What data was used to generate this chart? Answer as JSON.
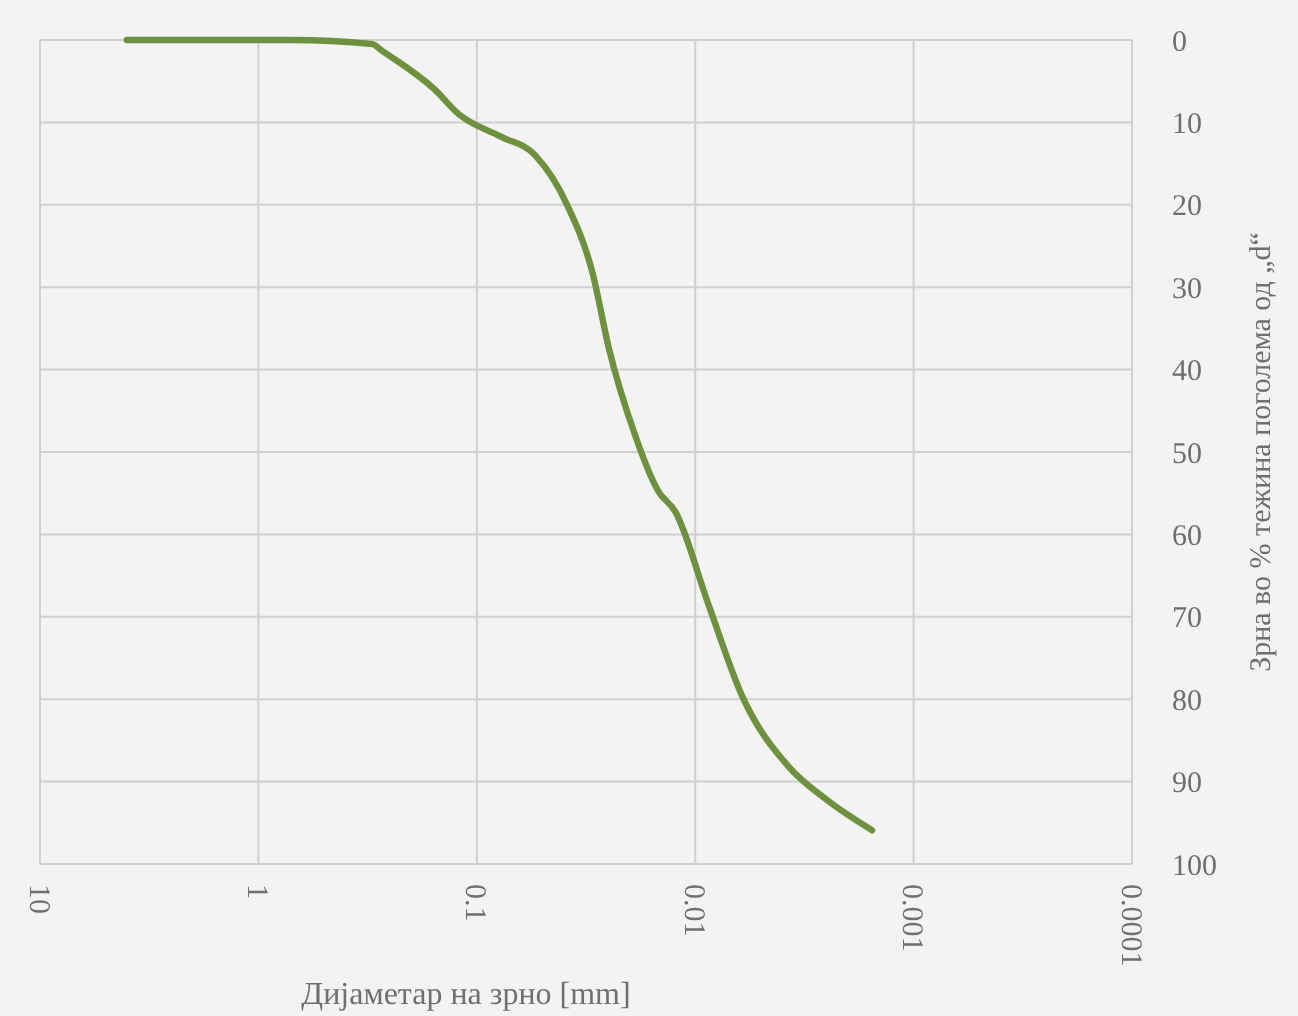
{
  "chart_data": {
    "type": "line",
    "xlabel": "Дијаметар на зрно [mm]",
    "ylabel": "Зрна во % тежина поголема од „d“",
    "x": [
      4.0,
      0.71,
      0.3,
      0.275,
      0.156,
      0.121,
      0.078,
      0.054,
      0.0386,
      0.0295,
      0.0248,
      0.019,
      0.0148,
      0.0123,
      0.0087,
      0.0061,
      0.0037,
      0.0025,
      0.00155
    ],
    "series": [
      {
        "color": "#6e9140",
        "values": [
          0,
          0,
          0.5,
          1.2,
          6,
          9,
          11.7,
          14,
          20,
          28.3,
          37.5,
          47.7,
          54.7,
          57.3,
          68.5,
          79.6,
          88.3,
          92.2,
          95.9
        ]
      }
    ],
    "log": "x",
    "xlim": [
      10,
      0.0001
    ],
    "ylim": [
      100,
      0
    ],
    "xticks": [
      10,
      1,
      0.1,
      0.01,
      0.001,
      0.0001
    ],
    "yticks": [
      0,
      10,
      20,
      30,
      40,
      50,
      60,
      70,
      80,
      90,
      100
    ],
    "grid": true,
    "marker": "none",
    "line_style": "solid"
  }
}
